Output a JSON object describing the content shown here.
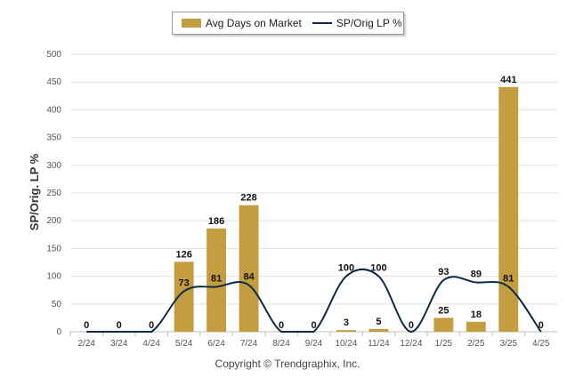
{
  "chart_data": {
    "type": "bar",
    "categories": [
      "2/24",
      "3/24",
      "4/24",
      "5/24",
      "6/24",
      "7/24",
      "8/24",
      "9/24",
      "10/24",
      "11/24",
      "12/24",
      "1/25",
      "2/25",
      "3/25",
      "4/25"
    ],
    "series": [
      {
        "name": "Avg Days on Market",
        "type": "bar",
        "color": "#c39d3f",
        "values": [
          0,
          0,
          0,
          126,
          186,
          228,
          0,
          0,
          3,
          5,
          0,
          25,
          18,
          441,
          0
        ]
      },
      {
        "name": "SP/Orig LP %",
        "type": "line",
        "color": "#0e2a47",
        "values": [
          0,
          0,
          0,
          73,
          81,
          84,
          0,
          0,
          100,
          100,
          0,
          93,
          89,
          81,
          0
        ]
      }
    ],
    "ylabel": "SP/Orig. LP %",
    "ylim": [
      0,
      500
    ],
    "yticks": [
      0,
      50,
      100,
      150,
      200,
      250,
      300,
      350,
      400,
      450,
      500
    ],
    "grid": true,
    "legend": "top-center"
  },
  "footer": "Copyright © Trendgraphix, Inc."
}
